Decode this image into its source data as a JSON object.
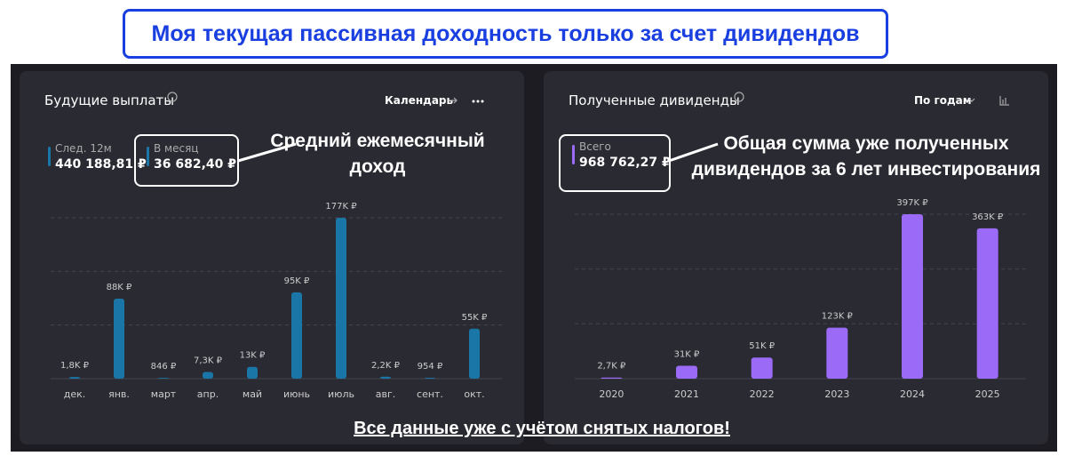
{
  "banner": "Моя текущая пассивная доходность только за счет дивидендов",
  "footer_note": "Все данные уже с учётом снятых налогов!",
  "chart_data": [
    {
      "type": "bar",
      "title": "Будущие выплаты",
      "control": "Календарь",
      "stats": [
        {
          "label": "След. 12м",
          "value": "440 188,81 ₽"
        },
        {
          "label": "В месяц",
          "value": "36 682,40 ₽"
        }
      ],
      "annotation": "Средний ежемесячный доход",
      "categories": [
        "дек.",
        "янв.",
        "март",
        "апр.",
        "май",
        "июнь",
        "июль",
        "авг.",
        "сент.",
        "окт."
      ],
      "values": [
        1800,
        88000,
        846,
        7300,
        13000,
        95000,
        177000,
        2200,
        954,
        55000
      ],
      "value_labels": [
        "1,8K ₽",
        "88K ₽",
        "846 ₽",
        "7,3K ₽",
        "13K ₽",
        "95K ₽",
        "177K ₽",
        "2,2K ₽",
        "954 ₽",
        "55K ₽"
      ],
      "color": "#1b76a8"
    },
    {
      "type": "bar",
      "title": "Полученные дивиденды",
      "control": "По годам",
      "stats": [
        {
          "label": "Всего",
          "value": "968 762,27 ₽"
        }
      ],
      "annotation": "Общая сумма уже полученных дивидендов за 6 лет инвестирования",
      "categories": [
        "2020",
        "2021",
        "2022",
        "2023",
        "2024",
        "2025"
      ],
      "values": [
        2700,
        31000,
        51000,
        123000,
        397000,
        363000
      ],
      "value_labels": [
        "2,7K ₽",
        "31K ₽",
        "51K ₽",
        "123K ₽",
        "397K ₽",
        "363K ₽"
      ],
      "color": "#9b6af7"
    }
  ]
}
